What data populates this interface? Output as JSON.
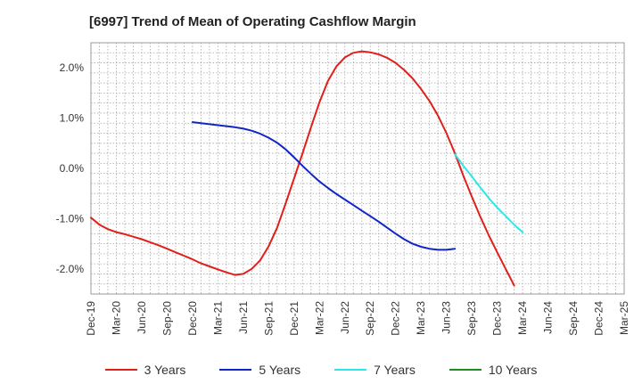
{
  "chart_data": {
    "type": "line",
    "title": "[6997]  Trend of Mean of Operating Cashflow Margin",
    "xlabel": "",
    "ylabel": "",
    "x_ticks": [
      "Dec-19",
      "Mar-20",
      "Jun-20",
      "Sep-20",
      "Dec-20",
      "Mar-21",
      "Jun-21",
      "Sep-21",
      "Dec-21",
      "Mar-22",
      "Jun-22",
      "Sep-22",
      "Dec-22",
      "Mar-23",
      "Jun-23",
      "Sep-23",
      "Dec-23",
      "Mar-24",
      "Jun-24",
      "Sep-24",
      "Dec-24",
      "Mar-25"
    ],
    "y_ticks": [
      "2.0%",
      "1.0%",
      "0.0%",
      "-1.0%",
      "-2.0%"
    ],
    "y_tick_values": [
      2.0,
      1.0,
      0.0,
      -1.0,
      -2.0
    ],
    "ylim": [
      -2.5,
      2.5
    ],
    "grid": true,
    "legend_position": "bottom",
    "series": [
      {
        "name": "3 Years",
        "color": "#e0201b",
        "points": [
          [
            "Dec-19",
            -0.98
          ],
          [
            "Jan-20",
            -1.12
          ],
          [
            "Feb-20",
            -1.21
          ],
          [
            "Mar-20",
            -1.27
          ],
          [
            "Apr-20",
            -1.31
          ],
          [
            "May-20",
            -1.36
          ],
          [
            "Jun-20",
            -1.41
          ],
          [
            "Jul-20",
            -1.47
          ],
          [
            "Aug-20",
            -1.53
          ],
          [
            "Sep-20",
            -1.6
          ],
          [
            "Oct-20",
            -1.67
          ],
          [
            "Nov-20",
            -1.74
          ],
          [
            "Dec-20",
            -1.81
          ],
          [
            "Jan-21",
            -1.89
          ],
          [
            "Feb-21",
            -1.95
          ],
          [
            "Mar-21",
            -2.01
          ],
          [
            "Apr-21",
            -2.07
          ],
          [
            "May-21",
            -2.12
          ],
          [
            "Jun-21",
            -2.1
          ],
          [
            "Jul-21",
            -2.0
          ],
          [
            "Aug-21",
            -1.83
          ],
          [
            "Sep-21",
            -1.55
          ],
          [
            "Oct-21",
            -1.18
          ],
          [
            "Nov-21",
            -0.7
          ],
          [
            "Dec-21",
            -0.2
          ],
          [
            "Jan-22",
            0.3
          ],
          [
            "Feb-22",
            0.82
          ],
          [
            "Mar-22",
            1.32
          ],
          [
            "Apr-22",
            1.74
          ],
          [
            "May-22",
            2.03
          ],
          [
            "Jun-22",
            2.21
          ],
          [
            "Jul-22",
            2.3
          ],
          [
            "Aug-22",
            2.33
          ],
          [
            "Sep-22",
            2.31
          ],
          [
            "Oct-22",
            2.27
          ],
          [
            "Nov-22",
            2.2
          ],
          [
            "Dec-22",
            2.1
          ],
          [
            "Jan-23",
            1.96
          ],
          [
            "Feb-23",
            1.79
          ],
          [
            "Mar-23",
            1.58
          ],
          [
            "Apr-23",
            1.34
          ],
          [
            "May-23",
            1.05
          ],
          [
            "Jun-23",
            0.7
          ],
          [
            "Jul-23",
            0.3
          ],
          [
            "Aug-23",
            -0.15
          ],
          [
            "Sep-23",
            -0.56
          ],
          [
            "Oct-23",
            -0.96
          ],
          [
            "Nov-23",
            -1.33
          ],
          [
            "Dec-23",
            -1.67
          ],
          [
            "Jan-24",
            -2.0
          ],
          [
            "Feb-24",
            -2.33
          ]
        ]
      },
      {
        "name": "5 Years",
        "color": "#1025c8",
        "points": [
          [
            "Dec-20",
            0.92
          ],
          [
            "Jan-21",
            0.9
          ],
          [
            "Feb-21",
            0.88
          ],
          [
            "Mar-21",
            0.86
          ],
          [
            "Apr-21",
            0.84
          ],
          [
            "May-21",
            0.82
          ],
          [
            "Jun-21",
            0.79
          ],
          [
            "Jul-21",
            0.75
          ],
          [
            "Aug-21",
            0.69
          ],
          [
            "Sep-21",
            0.61
          ],
          [
            "Oct-21",
            0.51
          ],
          [
            "Nov-21",
            0.38
          ],
          [
            "Dec-21",
            0.22
          ],
          [
            "Jan-22",
            0.05
          ],
          [
            "Feb-22",
            -0.11
          ],
          [
            "Mar-22",
            -0.26
          ],
          [
            "Apr-22",
            -0.39
          ],
          [
            "May-22",
            -0.51
          ],
          [
            "Jun-22",
            -0.62
          ],
          [
            "Jul-22",
            -0.73
          ],
          [
            "Aug-22",
            -0.84
          ],
          [
            "Sep-22",
            -0.95
          ],
          [
            "Oct-22",
            -1.06
          ],
          [
            "Nov-22",
            -1.18
          ],
          [
            "Dec-22",
            -1.3
          ],
          [
            "Jan-23",
            -1.41
          ],
          [
            "Feb-23",
            -1.5
          ],
          [
            "Mar-23",
            -1.56
          ],
          [
            "Apr-23",
            -1.6
          ],
          [
            "May-23",
            -1.62
          ],
          [
            "Jun-23",
            -1.62
          ],
          [
            "Jul-23",
            -1.6
          ]
        ]
      },
      {
        "name": "7 Years",
        "color": "#2ee6e6",
        "points": [
          [
            "Jul-23",
            0.28
          ],
          [
            "Aug-23",
            0.05
          ],
          [
            "Sep-23",
            -0.16
          ],
          [
            "Oct-23",
            -0.38
          ],
          [
            "Nov-23",
            -0.59
          ],
          [
            "Dec-23",
            -0.78
          ],
          [
            "Jan-24",
            -0.95
          ],
          [
            "Feb-24",
            -1.12
          ],
          [
            "Mar-24",
            -1.27
          ]
        ]
      },
      {
        "name": "10 Years",
        "color": "#1e8c1e",
        "points": []
      }
    ]
  }
}
